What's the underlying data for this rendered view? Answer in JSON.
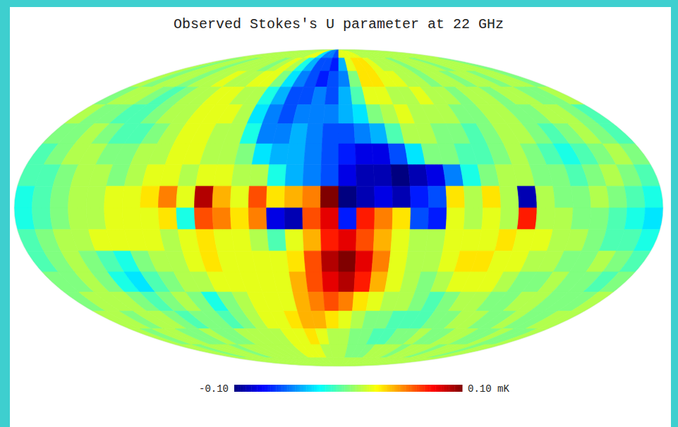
{
  "chart_data": {
    "type": "heatmap",
    "title": "Observed Stokes's U parameter at 22 GHz",
    "xlim": [
      180,
      -180
    ],
    "ylim": [
      -90,
      90
    ],
    "tick_labels": false,
    "color_range": [
      -0.1,
      0.1
    ],
    "color_ticks": [
      {
        "value": -0.1,
        "label": "-0.10"
      },
      {
        "value": 0.1,
        "label": "0.10 mK"
      }
    ],
    "cells": [
      [
        0.01,
        0.01,
        0.01,
        0.01,
        0.01,
        0.01,
        0.01,
        0.01,
        0.01,
        0.01,
        0.01,
        0.01,
        0.02,
        0.02,
        -0.03,
        -0.05,
        -0.05,
        -0.06,
        0.02,
        0.02,
        0.02,
        0.02,
        0.01,
        0.01,
        0.01,
        0.01,
        0.01,
        0.01,
        0.01,
        0.01,
        0.01,
        0.01,
        0.01,
        0.01,
        0.01,
        0.01
      ],
      [
        0.01,
        0,
        0.01,
        0.01,
        0,
        0.01,
        0.01,
        0.01,
        0.01,
        0,
        0.01,
        0.02,
        0.01,
        -0.02,
        -0.04,
        -0.06,
        -0.06,
        -0.07,
        -0.04,
        0.02,
        0.03,
        0.03,
        0.02,
        0.01,
        0.01,
        0.01,
        0,
        0.01,
        0.01,
        0.01,
        0,
        0.01,
        0.01,
        0.01,
        0.01,
        0
      ],
      [
        0.01,
        0,
        0.01,
        0.01,
        0,
        0.01,
        0.01,
        0.02,
        0.01,
        0.01,
        0.02,
        0.02,
        0,
        -0.03,
        -0.05,
        -0.06,
        -0.07,
        -0.06,
        -0.05,
        0,
        0.03,
        0.03,
        0.02,
        0.02,
        0.01,
        0.01,
        0,
        0.01,
        0.01,
        0,
        0.01,
        0.01,
        0,
        0.01,
        0.01,
        0
      ],
      [
        0,
        0.01,
        0.01,
        0,
        -0.01,
        0,
        0.01,
        0.01,
        0.02,
        0.02,
        0.01,
        0.01,
        -0.02,
        -0.04,
        -0.06,
        -0.06,
        -0.05,
        -0.06,
        -0.04,
        -0.01,
        0.02,
        0.02,
        0.01,
        0.01,
        0.02,
        0.01,
        0.01,
        0,
        0.01,
        0.01,
        0,
        0.01,
        0.01,
        0,
        0,
        0.01
      ],
      [
        0.01,
        0,
        0,
        -0.01,
        -0.01,
        0,
        0.01,
        0.01,
        0.02,
        0.02,
        0.02,
        0.01,
        -0.03,
        -0.05,
        -0.06,
        -0.05,
        -0.05,
        -0.05,
        -0.04,
        -0.03,
        0,
        0.01,
        0.02,
        0.01,
        0.01,
        0.01,
        0,
        0,
        0.01,
        0.01,
        0,
        0,
        0.01,
        0.01,
        0,
        -0.01
      ],
      [
        0,
        0,
        0.01,
        0,
        -0.01,
        -0.01,
        0,
        0.01,
        0.02,
        0.02,
        0.01,
        0.01,
        -0.02,
        -0.05,
        -0.05,
        -0.04,
        -0.05,
        -0.06,
        -0.06,
        -0.05,
        -0.04,
        -0.01,
        0.01,
        0.01,
        0,
        0,
        -0.01,
        0,
        0.01,
        0.01,
        0,
        -0.01,
        0,
        0.01,
        0,
        -0.01
      ],
      [
        -0.01,
        0,
        0.01,
        0.01,
        0,
        0,
        0.01,
        0.01,
        0.02,
        0.02,
        0.01,
        0.01,
        0,
        -0.03,
        -0.04,
        -0.04,
        -0.05,
        -0.06,
        -0.07,
        -0.08,
        -0.08,
        -0.06,
        -0.03,
        0,
        0,
        -0.01,
        -0.01,
        0,
        0.01,
        0,
        -0.01,
        -0.02,
        -0.01,
        0,
        0.01,
        0
      ],
      [
        -0.01,
        -0.01,
        0,
        0.01,
        0.01,
        0,
        0.01,
        0.02,
        0.02,
        0.01,
        0.02,
        0.02,
        0.01,
        0.01,
        -0.02,
        -0.04,
        -0.05,
        -0.06,
        -0.08,
        -0.09,
        -0.09,
        -0.1,
        -0.09,
        -0.08,
        -0.05,
        -0.02,
        0,
        0.01,
        0.01,
        0,
        0,
        -0.01,
        0,
        0.01,
        0,
        -0.01
      ],
      [
        -0.02,
        -0.01,
        0,
        0.01,
        0.01,
        0.02,
        0.02,
        0.03,
        0.05,
        0.02,
        0.09,
        0.04,
        0.02,
        0.06,
        0.03,
        0.04,
        0.05,
        0.1,
        -0.1,
        -0.09,
        -0.08,
        -0.09,
        -0.07,
        -0.06,
        0.03,
        0.01,
        0.03,
        0.01,
        -0.09,
        0.01,
        0,
        0,
        0.01,
        0,
        -0.01,
        -0.02
      ],
      [
        -0.02,
        -0.01,
        0,
        0.01,
        0.01,
        0.02,
        0.02,
        0.02,
        0.03,
        -0.02,
        0.06,
        0.05,
        0.03,
        0.05,
        -0.08,
        -0.09,
        0.06,
        0.08,
        -0.07,
        0.07,
        0.05,
        0.03,
        -0.06,
        -0.07,
        0.02,
        0.01,
        0.02,
        0.01,
        0.07,
        0.01,
        0.01,
        0,
        0,
        -0.01,
        -0.02,
        -0.03
      ],
      [
        -0.01,
        0,
        0.01,
        0.01,
        0.02,
        0.02,
        0.02,
        0.02,
        0.01,
        0.02,
        0.03,
        0.02,
        0.02,
        0.01,
        -0.01,
        0.02,
        0.04,
        0.07,
        0.08,
        0.06,
        0.04,
        0.02,
        0.01,
        0.01,
        0.02,
        0.02,
        0.02,
        0.03,
        0.02,
        0.02,
        0.01,
        0.01,
        0,
        -0.01,
        -0.01,
        -0.02
      ],
      [
        -0.01,
        0,
        0.01,
        0,
        -0.01,
        -0.02,
        0,
        0.01,
        0.01,
        0.02,
        0.03,
        0.02,
        0.02,
        0.02,
        0.02,
        0.03,
        0.06,
        0.09,
        0.1,
        0.08,
        0.05,
        0.02,
        0.01,
        0.01,
        0.02,
        0.03,
        0.03,
        0.02,
        0.02,
        0.01,
        0.01,
        0,
        0,
        0.01,
        0,
        -0.01
      ],
      [
        0,
        0,
        0.01,
        0,
        -0.02,
        -0.03,
        -0.01,
        0,
        0.01,
        0.01,
        0.02,
        0.02,
        0.02,
        0.02,
        0.02,
        0.04,
        0.06,
        0.08,
        0.09,
        0.07,
        0.04,
        0.02,
        0.01,
        0,
        0.01,
        0.02,
        0.02,
        0.02,
        0.01,
        0,
        0,
        0.01,
        0,
        0,
        -0.01,
        0
      ],
      [
        0,
        0.01,
        0.01,
        0.01,
        0,
        -0.01,
        0,
        0.01,
        0,
        -0.02,
        0,
        0.01,
        0.02,
        0.02,
        0.02,
        0.04,
        0.05,
        0.06,
        0.05,
        0.03,
        0.02,
        0.01,
        0.01,
        0,
        -0.01,
        0,
        0.01,
        0.01,
        0,
        0,
        0.01,
        0.01,
        0,
        0,
        0,
        0.01
      ],
      [
        0.01,
        0.01,
        0,
        0.01,
        0.01,
        0,
        -0.01,
        0,
        0,
        -0.01,
        0,
        0.01,
        0.02,
        0.02,
        0.03,
        0.04,
        0.04,
        0.03,
        0.02,
        0.01,
        0,
        0,
        -0.01,
        -0.01,
        -0.01,
        0,
        0,
        0.01,
        0.01,
        0,
        0,
        0.01,
        0,
        0,
        0.01,
        0.01
      ],
      [
        0.01,
        0,
        0.01,
        0.01,
        0,
        0,
        0.01,
        0,
        0,
        0.01,
        0.01,
        0.01,
        0.01,
        0.02,
        0.02,
        0.03,
        0.02,
        0.01,
        0.01,
        0,
        0,
        -0.01,
        -0.01,
        0,
        0,
        0.01,
        0,
        0,
        0.01,
        0.01,
        0,
        0,
        0.01,
        0,
        0,
        0.01
      ],
      [
        0.01,
        0.01,
        0,
        0.01,
        0.01,
        0.01,
        0,
        0.01,
        0.01,
        0.01,
        0.01,
        0.01,
        0.01,
        0.02,
        0.02,
        0.02,
        0.01,
        0.01,
        0.01,
        0,
        0,
        0,
        0.01,
        0.01,
        0.01,
        0,
        0.01,
        0.01,
        0.01,
        0,
        0.01,
        0.01,
        0.01,
        0,
        0.01,
        0.01
      ],
      [
        0.01,
        0.01,
        0.01,
        0.01,
        0.01,
        0.01,
        0.01,
        0.01,
        0.01,
        0.01,
        0.01,
        0.01,
        0.01,
        0.01,
        0.01,
        0.01,
        0.01,
        0.01,
        0.01,
        0.01,
        0.01,
        0.01,
        0.01,
        0.01,
        0.01,
        0.01,
        0.01,
        0.01,
        0.01,
        0.01,
        0.01,
        0.01,
        0.01,
        0.01,
        0.01,
        0.01
      ]
    ]
  }
}
